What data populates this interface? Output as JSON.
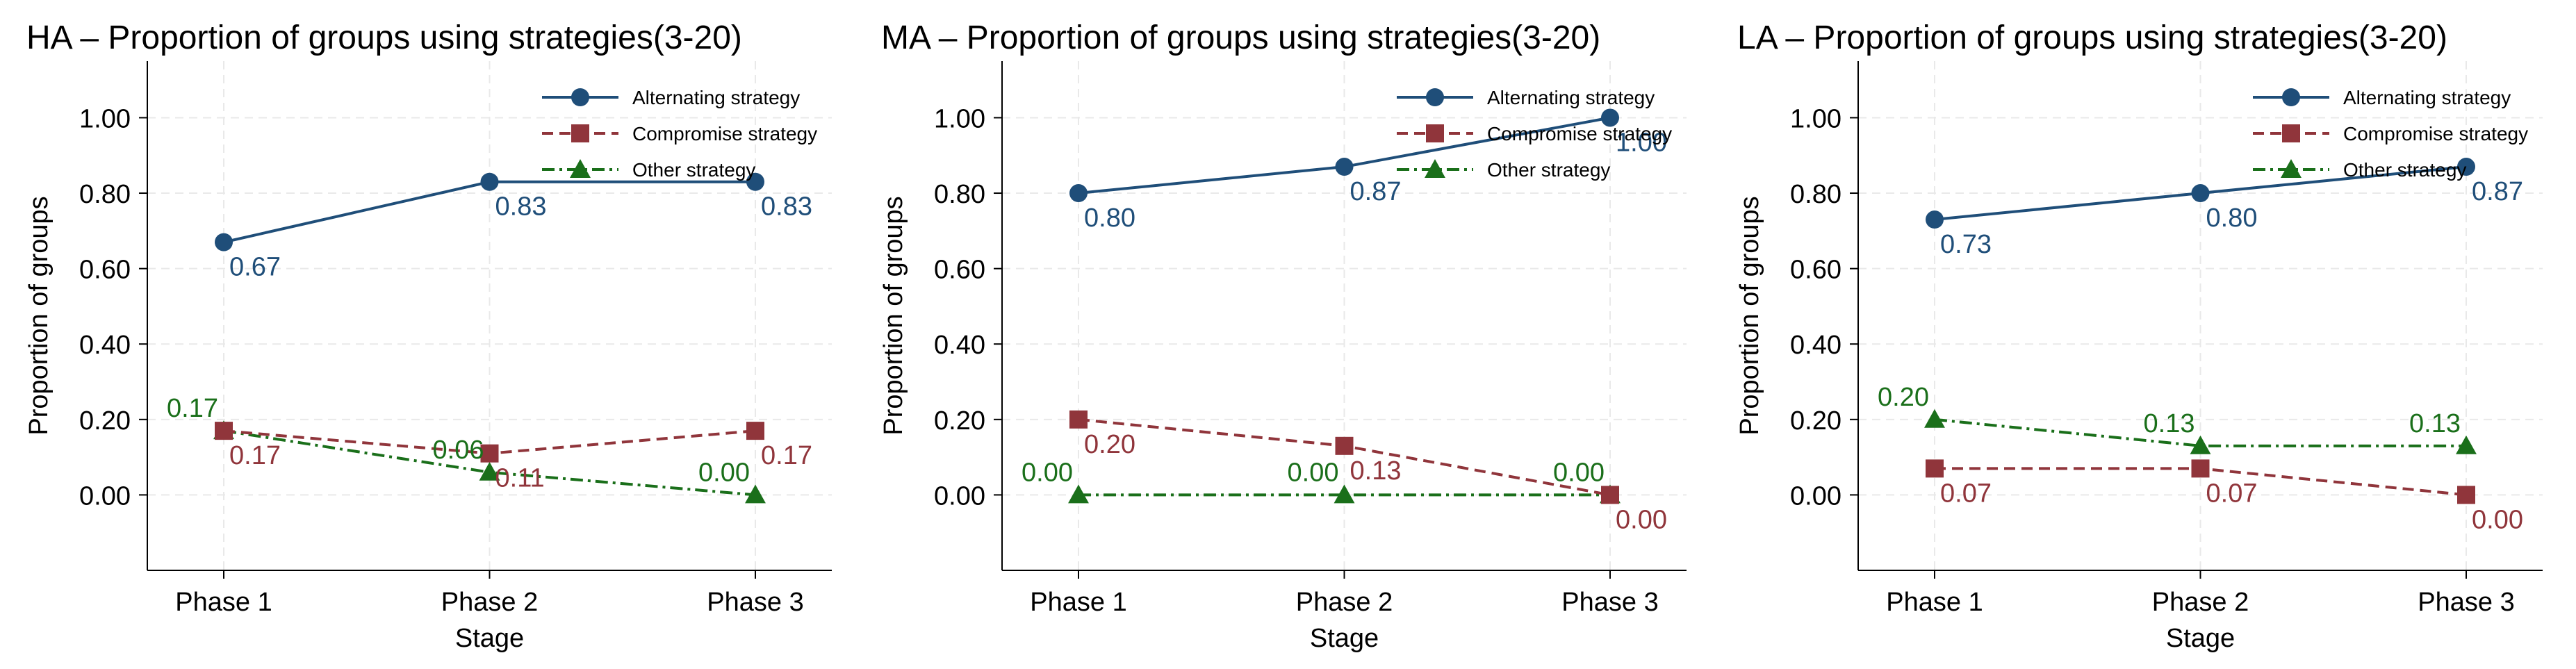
{
  "colors": {
    "alternating": "#1f4e79",
    "compromise": "#90353b",
    "other": "#1a6f1a",
    "axis": "#000000",
    "grid": "#e9e9e9",
    "background": "#ffffff"
  },
  "chart_data": [
    {
      "type": "line",
      "title": "HA – Proportion of groups using strategies(3-20)",
      "xlabel": "Stage",
      "ylabel": "Proportion of groups",
      "categories": [
        "Phase 1",
        "Phase 2",
        "Phase 3"
      ],
      "yticks": [
        "0.00",
        "0.20",
        "0.40",
        "0.60",
        "0.80",
        "1.00"
      ],
      "ylim": [
        -0.2,
        1.15
      ],
      "grid": true,
      "legend_position": "top-right",
      "series": [
        {
          "name": "Alternating strategy",
          "key": "alternating",
          "marker": "circle",
          "dash": "solid",
          "label_side": "below-right",
          "values": [
            0.67,
            0.83,
            0.83
          ],
          "labels": [
            "0.67",
            "0.83",
            "0.83"
          ]
        },
        {
          "name": "Compromise strategy",
          "key": "compromise",
          "marker": "square",
          "dash": "dash",
          "label_side": "below-right",
          "values": [
            0.17,
            0.11,
            0.17
          ],
          "labels": [
            "0.17",
            "0.11",
            "0.17"
          ]
        },
        {
          "name": "Other strategy",
          "key": "other",
          "marker": "triangle",
          "dash": "dashdot",
          "label_side": "above-left",
          "values": [
            0.17,
            0.06,
            0.0
          ],
          "labels": [
            "0.17",
            "0.06",
            "0.00"
          ]
        }
      ]
    },
    {
      "type": "line",
      "title": "MA – Proportion of groups using strategies(3-20)",
      "xlabel": "Stage",
      "ylabel": "Proportion of groups",
      "categories": [
        "Phase 1",
        "Phase 2",
        "Phase 3"
      ],
      "yticks": [
        "0.00",
        "0.20",
        "0.40",
        "0.60",
        "0.80",
        "1.00"
      ],
      "ylim": [
        -0.2,
        1.15
      ],
      "grid": true,
      "legend_position": "top-right",
      "series": [
        {
          "name": "Alternating strategy",
          "key": "alternating",
          "marker": "circle",
          "dash": "solid",
          "label_side": "below-right",
          "values": [
            0.8,
            0.87,
            1.0
          ],
          "labels": [
            "0.80",
            "0.87",
            "1.00"
          ]
        },
        {
          "name": "Compromise strategy",
          "key": "compromise",
          "marker": "square",
          "dash": "dash",
          "label_side": "below-right",
          "values": [
            0.2,
            0.13,
            0.0
          ],
          "labels": [
            "0.20",
            "0.13",
            "0.00"
          ]
        },
        {
          "name": "Other strategy",
          "key": "other",
          "marker": "triangle",
          "dash": "dashdot",
          "label_side": "above-left",
          "values": [
            0.0,
            0.0,
            0.0
          ],
          "labels": [
            "0.00",
            "0.00",
            "0.00"
          ]
        }
      ]
    },
    {
      "type": "line",
      "title": "LA – Proportion of groups using strategies(3-20)",
      "xlabel": "Stage",
      "ylabel": "Proportion of groups",
      "categories": [
        "Phase 1",
        "Phase 2",
        "Phase 3"
      ],
      "yticks": [
        "0.00",
        "0.20",
        "0.40",
        "0.60",
        "0.80",
        "1.00"
      ],
      "ylim": [
        -0.2,
        1.15
      ],
      "grid": true,
      "legend_position": "top-right",
      "series": [
        {
          "name": "Alternating strategy",
          "key": "alternating",
          "marker": "circle",
          "dash": "solid",
          "label_side": "below-right",
          "values": [
            0.73,
            0.8,
            0.87
          ],
          "labels": [
            "0.73",
            "0.80",
            "0.87"
          ]
        },
        {
          "name": "Compromise strategy",
          "key": "compromise",
          "marker": "square",
          "dash": "dash",
          "label_side": "below-right",
          "values": [
            0.07,
            0.07,
            0.0
          ],
          "labels": [
            "0.07",
            "0.07",
            "0.00"
          ]
        },
        {
          "name": "Other strategy",
          "key": "other",
          "marker": "triangle",
          "dash": "dashdot",
          "label_side": "above-left",
          "values": [
            0.2,
            0.13,
            0.13
          ],
          "labels": [
            "0.20",
            "0.13",
            "0.13"
          ]
        }
      ]
    }
  ]
}
